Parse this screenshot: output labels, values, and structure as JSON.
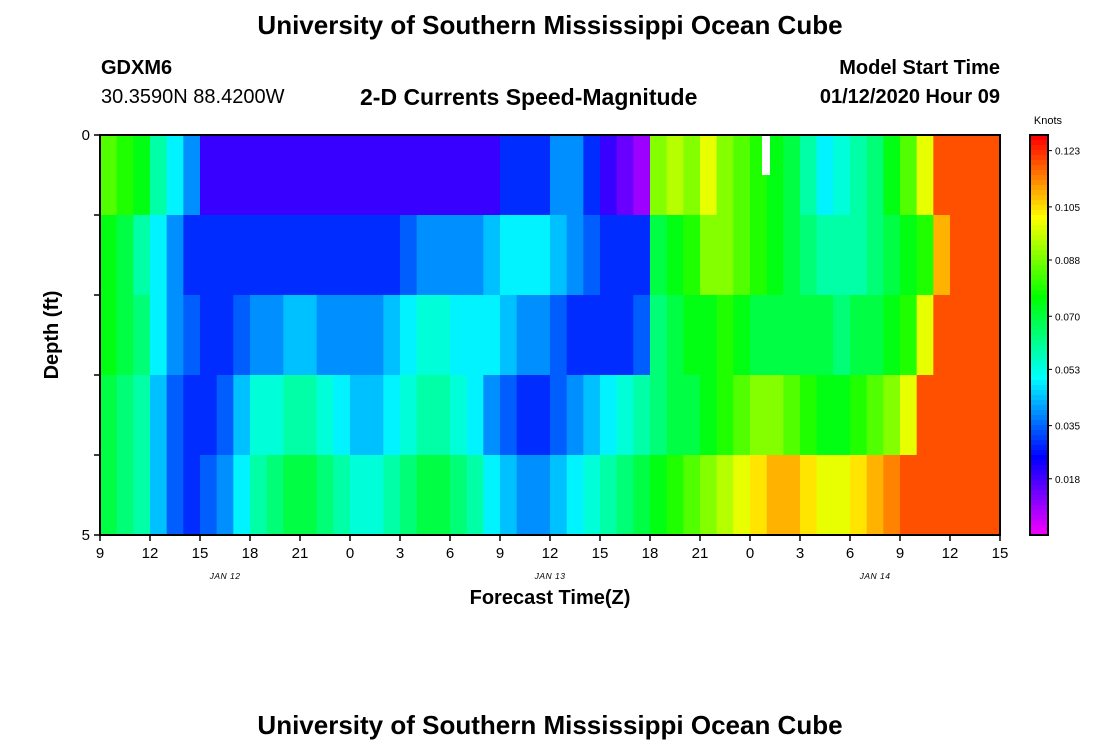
{
  "header": {
    "title": "University of Southern Mississippi Ocean Cube",
    "footer_title": "University of Southern Mississippi Ocean Cube",
    "station_id": "GDXM6",
    "coordinates": "30.3590N 88.4200W",
    "plot_title": "2-D Currents Speed-Magnitude",
    "model_start_label": "Model Start Time",
    "model_start_value": "01/12/2020 Hour 09"
  },
  "chart_data": {
    "type": "heatmap",
    "title": "2-D Currents Speed-Magnitude",
    "xlabel": "Forecast Time(Z)",
    "ylabel": "Depth (ft)",
    "x_tick_labels": [
      "9",
      "12",
      "15",
      "18",
      "21",
      "0",
      "3",
      "6",
      "9",
      "12",
      "15",
      "18",
      "21",
      "0",
      "3",
      "6",
      "9",
      "12",
      "15"
    ],
    "date_labels": [
      "JAN 12",
      "JAN 13",
      "JAN 14"
    ],
    "y_tick_labels": [
      "0",
      "5"
    ],
    "ylim": [
      0,
      5
    ],
    "x_hours_range": [
      0,
      54
    ],
    "colorbar": {
      "unit": "Knots",
      "ticks": [
        "0.123",
        "0.105",
        "0.088",
        "0.070",
        "0.053",
        "0.035",
        "0.018"
      ],
      "vmin": 0.0,
      "vmax": 0.128
    },
    "depth_rows": 5,
    "time_columns": 54,
    "values": [
      [
        0.085,
        0.08,
        0.075,
        0.06,
        0.05,
        0.04,
        0.02,
        0.02,
        0.02,
        0.02,
        0.02,
        0.02,
        0.02,
        0.02,
        0.02,
        0.02,
        0.02,
        0.02,
        0.02,
        0.02,
        0.02,
        0.02,
        0.02,
        0.02,
        0.03,
        0.03,
        0.03,
        0.04,
        0.04,
        0.03,
        0.02,
        0.015,
        0.01,
        0.09,
        0.095,
        0.09,
        0.1,
        0.09,
        0.085,
        0.08,
        0.075,
        0.07,
        0.06,
        0.05,
        0.055,
        0.06,
        0.065,
        0.075,
        0.085,
        0.1,
        0.12,
        0.12,
        0.12,
        0.12
      ],
      [
        0.075,
        0.07,
        0.06,
        0.05,
        0.04,
        0.03,
        0.03,
        0.03,
        0.03,
        0.03,
        0.03,
        0.03,
        0.03,
        0.03,
        0.03,
        0.03,
        0.03,
        0.03,
        0.035,
        0.04,
        0.04,
        0.04,
        0.04,
        0.045,
        0.05,
        0.05,
        0.05,
        0.045,
        0.04,
        0.035,
        0.03,
        0.03,
        0.03,
        0.07,
        0.075,
        0.08,
        0.09,
        0.09,
        0.085,
        0.08,
        0.075,
        0.07,
        0.065,
        0.06,
        0.06,
        0.06,
        0.065,
        0.07,
        0.075,
        0.08,
        0.11,
        0.12,
        0.12,
        0.12
      ],
      [
        0.075,
        0.07,
        0.065,
        0.05,
        0.04,
        0.035,
        0.03,
        0.03,
        0.035,
        0.04,
        0.04,
        0.045,
        0.045,
        0.04,
        0.04,
        0.04,
        0.04,
        0.045,
        0.05,
        0.055,
        0.055,
        0.05,
        0.05,
        0.05,
        0.045,
        0.04,
        0.04,
        0.035,
        0.03,
        0.03,
        0.03,
        0.03,
        0.035,
        0.065,
        0.07,
        0.075,
        0.075,
        0.08,
        0.075,
        0.07,
        0.07,
        0.07,
        0.07,
        0.07,
        0.065,
        0.07,
        0.07,
        0.075,
        0.08,
        0.1,
        0.12,
        0.12,
        0.12,
        0.12
      ],
      [
        0.07,
        0.065,
        0.06,
        0.045,
        0.035,
        0.03,
        0.03,
        0.035,
        0.045,
        0.055,
        0.055,
        0.06,
        0.06,
        0.055,
        0.05,
        0.045,
        0.045,
        0.05,
        0.055,
        0.06,
        0.06,
        0.055,
        0.05,
        0.04,
        0.035,
        0.03,
        0.03,
        0.035,
        0.04,
        0.045,
        0.05,
        0.055,
        0.06,
        0.065,
        0.07,
        0.07,
        0.075,
        0.08,
        0.085,
        0.09,
        0.09,
        0.085,
        0.08,
        0.075,
        0.075,
        0.08,
        0.085,
        0.09,
        0.1,
        0.12,
        0.12,
        0.12,
        0.12,
        0.12
      ],
      [
        0.07,
        0.065,
        0.06,
        0.045,
        0.035,
        0.03,
        0.035,
        0.04,
        0.05,
        0.06,
        0.065,
        0.07,
        0.07,
        0.065,
        0.06,
        0.055,
        0.055,
        0.06,
        0.065,
        0.07,
        0.07,
        0.065,
        0.06,
        0.05,
        0.045,
        0.04,
        0.04,
        0.045,
        0.05,
        0.055,
        0.06,
        0.065,
        0.07,
        0.075,
        0.08,
        0.085,
        0.09,
        0.095,
        0.1,
        0.105,
        0.11,
        0.11,
        0.105,
        0.1,
        0.1,
        0.105,
        0.11,
        0.115,
        0.12,
        0.12,
        0.12,
        0.12,
        0.12,
        0.12
      ]
    ]
  }
}
